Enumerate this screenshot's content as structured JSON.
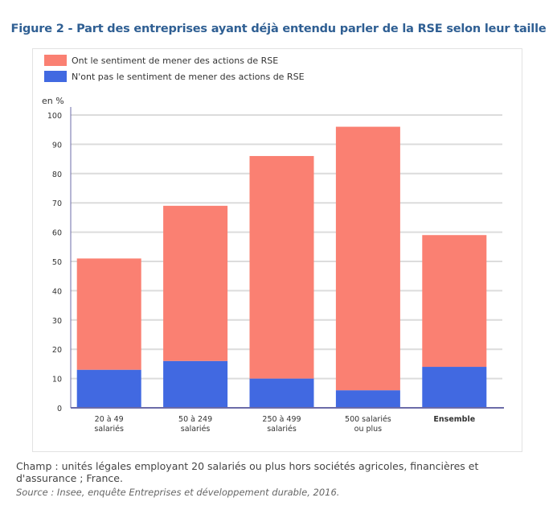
{
  "title": "Figure 2 - Part des entreprises ayant déjà entendu parler de la RSE selon leur taille",
  "chart_data": {
    "type": "bar",
    "stacked": true,
    "ylabel": "en %",
    "ylim": [
      0,
      100
    ],
    "yticks": [
      0,
      10,
      20,
      30,
      40,
      50,
      60,
      70,
      80,
      90,
      100
    ],
    "grid": true,
    "legend": "top-left",
    "categories": [
      [
        "20 à 49",
        "salariés"
      ],
      [
        "50 à 249",
        "salariés"
      ],
      [
        "250 à 499",
        "salariés"
      ],
      [
        "500 salariés",
        "ou plus"
      ],
      [
        "Ensemble"
      ]
    ],
    "series": [
      {
        "name": "N'ont pas le sentiment de mener des actions de RSE",
        "color": "#4169e1",
        "values": [
          13,
          16,
          10,
          6,
          14
        ]
      },
      {
        "name": "Ont le sentiment de mener des actions de RSE",
        "color": "#fa8072",
        "values": [
          38,
          53,
          76,
          90,
          45
        ]
      }
    ]
  },
  "notes": {
    "champ": "Champ : unités légales employant 20 salariés ou plus hors sociétés agricoles, financières et d'assurance ; France.",
    "source": "Source : Insee, enquête Entreprises et développement durable, 2016."
  }
}
